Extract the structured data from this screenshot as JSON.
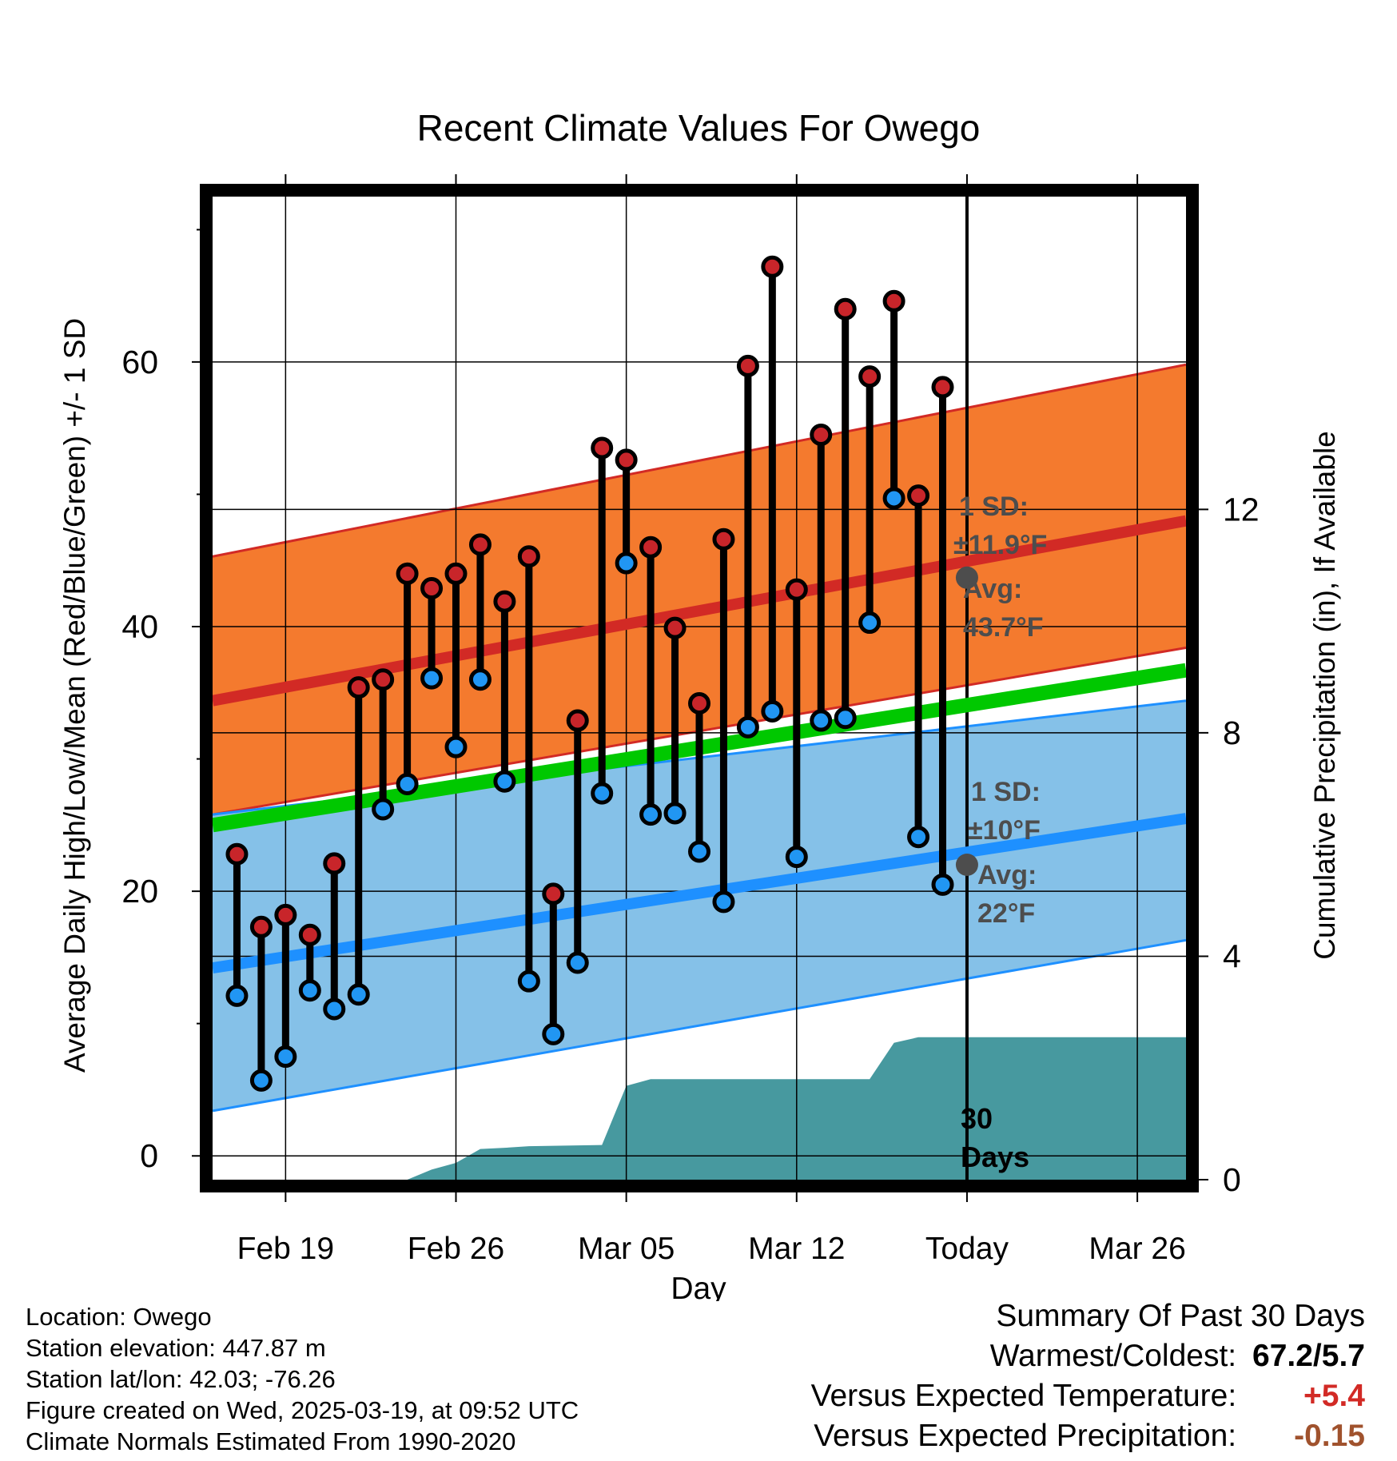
{
  "chart_data": {
    "type": "line",
    "title": "Recent Climate Values For Owego",
    "xlabel": "Day",
    "ylabel": "Average Daily High/Low/Mean (Red/Blue/Green) +/- 1 SD",
    "y2label": "Cumulative Precipitation (in), If Available",
    "x_ticks": [
      {
        "day": 2,
        "label": "Feb 19"
      },
      {
        "day": 9,
        "label": "Feb 26"
      },
      {
        "day": 16,
        "label": "Mar 05"
      },
      {
        "day": 23,
        "label": "Mar 12"
      },
      {
        "day": 30,
        "label": "Today"
      },
      {
        "day": 37,
        "label": "Mar 26"
      }
    ],
    "x_range": [
      -1,
      39
    ],
    "ylim": [
      -1.8,
      72.5
    ],
    "y_ticks": [
      0,
      20,
      40,
      60
    ],
    "y2lim": [
      0,
      17.6
    ],
    "y2_ticks": [
      0,
      4,
      8,
      12
    ],
    "today_day": 30,
    "normals": {
      "day": [
        -1,
        39
      ],
      "high_mean": [
        34.4,
        48.0
      ],
      "high_upper": [
        45.3,
        59.8
      ],
      "high_lower": [
        25.8,
        38.4
      ],
      "mean": [
        25.0,
        36.7
      ],
      "low_mean": [
        14.2,
        25.5
      ],
      "low_upper": [
        25.8,
        34.4
      ],
      "low_lower": [
        3.4,
        16.3
      ]
    },
    "series": [
      {
        "name": "High",
        "values": [
          {
            "day": 0,
            "value": 22.8
          },
          {
            "day": 1,
            "value": 17.3
          },
          {
            "day": 2,
            "value": 18.2
          },
          {
            "day": 3,
            "value": 16.7
          },
          {
            "day": 4,
            "value": 22.1
          },
          {
            "day": 5,
            "value": 35.4
          },
          {
            "day": 6,
            "value": 36.0
          },
          {
            "day": 7,
            "value": 44.0
          },
          {
            "day": 8,
            "value": 42.9
          },
          {
            "day": 9,
            "value": 44.0
          },
          {
            "day": 10,
            "value": 46.2
          },
          {
            "day": 11,
            "value": 41.9
          },
          {
            "day": 12,
            "value": 45.3
          },
          {
            "day": 13,
            "value": 19.8
          },
          {
            "day": 14,
            "value": 32.9
          },
          {
            "day": 15,
            "value": 53.5
          },
          {
            "day": 16,
            "value": 52.6
          },
          {
            "day": 17,
            "value": 46.0
          },
          {
            "day": 18,
            "value": 39.9
          },
          {
            "day": 19,
            "value": 34.2
          },
          {
            "day": 20,
            "value": 46.6
          },
          {
            "day": 21,
            "value": 59.7
          },
          {
            "day": 22,
            "value": 67.2
          },
          {
            "day": 23,
            "value": 42.8
          },
          {
            "day": 24,
            "value": 54.5
          },
          {
            "day": 25,
            "value": 64.0
          },
          {
            "day": 26,
            "value": 58.9
          },
          {
            "day": 27,
            "value": 64.6
          },
          {
            "day": 28,
            "value": 49.9
          },
          {
            "day": 29,
            "value": 58.1
          }
        ]
      },
      {
        "name": "Low",
        "values": [
          {
            "day": 0,
            "value": 12.1
          },
          {
            "day": 1,
            "value": 5.7
          },
          {
            "day": 2,
            "value": 7.5
          },
          {
            "day": 3,
            "value": 12.5
          },
          {
            "day": 4,
            "value": 11.1
          },
          {
            "day": 5,
            "value": 12.2
          },
          {
            "day": 6,
            "value": 26.2
          },
          {
            "day": 7,
            "value": 28.1
          },
          {
            "day": 8,
            "value": 36.1
          },
          {
            "day": 9,
            "value": 30.9
          },
          {
            "day": 10,
            "value": 36.0
          },
          {
            "day": 11,
            "value": 28.3
          },
          {
            "day": 12,
            "value": 13.2
          },
          {
            "day": 13,
            "value": 9.2
          },
          {
            "day": 14,
            "value": 14.6
          },
          {
            "day": 15,
            "value": 27.4
          },
          {
            "day": 16,
            "value": 44.8
          },
          {
            "day": 17,
            "value": 25.8
          },
          {
            "day": 18,
            "value": 25.9
          },
          {
            "day": 19,
            "value": 23.0
          },
          {
            "day": 20,
            "value": 19.2
          },
          {
            "day": 21,
            "value": 32.4
          },
          {
            "day": 22,
            "value": 33.6
          },
          {
            "day": 23,
            "value": 22.6
          },
          {
            "day": 24,
            "value": 32.9
          },
          {
            "day": 25,
            "value": 33.1
          },
          {
            "day": 26,
            "value": 40.3
          },
          {
            "day": 27,
            "value": 49.7
          },
          {
            "day": 28,
            "value": 24.1
          },
          {
            "day": 29,
            "value": 20.5
          }
        ]
      },
      {
        "name": "Cumulative Precipitation",
        "values": [
          {
            "day": -1,
            "value": 0
          },
          {
            "day": 7,
            "value": 0
          },
          {
            "day": 8,
            "value": 0.18
          },
          {
            "day": 9,
            "value": 0.3
          },
          {
            "day": 10,
            "value": 0.55
          },
          {
            "day": 11,
            "value": 0.57
          },
          {
            "day": 12,
            "value": 0.6
          },
          {
            "day": 15,
            "value": 0.62
          },
          {
            "day": 16,
            "value": 1.68
          },
          {
            "day": 17,
            "value": 1.8
          },
          {
            "day": 25,
            "value": 1.8
          },
          {
            "day": 26,
            "value": 1.8
          },
          {
            "day": 27,
            "value": 2.45
          },
          {
            "day": 28,
            "value": 2.55
          },
          {
            "day": 39,
            "value": 2.55
          }
        ]
      }
    ],
    "annotations": {
      "high_sd_label": "1 SD:",
      "high_sd_value": "±11.9°F",
      "high_avg_label": "Avg:",
      "high_avg_value": "43.7°F",
      "high_avg_point": 43.7,
      "low_sd_label": "1 SD:",
      "low_sd_value": "±10°F",
      "low_avg_label": "Avg:",
      "low_avg_value": "22°F",
      "low_avg_point": 22,
      "days_label_1": "30",
      "days_label_2": "Days"
    },
    "colors": {
      "high_band": "#f47a2e",
      "high_line": "#d22a25",
      "low_band": "#85c1e8",
      "low_line": "#1e90ff",
      "mean_line": "#00c800",
      "precip": "#47999f",
      "high_dot": "#c8252a",
      "low_dot": "#2196f3",
      "annotation": "#4d4d4d"
    }
  },
  "footer": {
    "location": "Location: Owego",
    "elevation": "Station elevation: 447.87 m",
    "latlon": "Station lat/lon: 42.03; -76.26",
    "created": "Figure created on Wed, 2025-03-19, at 09:52 UTC",
    "normals": "Climate Normals Estimated From 1990-2020"
  },
  "summary": {
    "title": "Summary Of Past 30 Days",
    "warm_label": "Warmest/Coldest:",
    "warm_value": "67.2/5.7",
    "temp_label": "Versus Expected Temperature:",
    "temp_value": "+5.4",
    "temp_color": "#d22a25",
    "precip_label": "Versus Expected Precipitation:",
    "precip_value": "-0.15",
    "precip_color": "#a0522d"
  }
}
